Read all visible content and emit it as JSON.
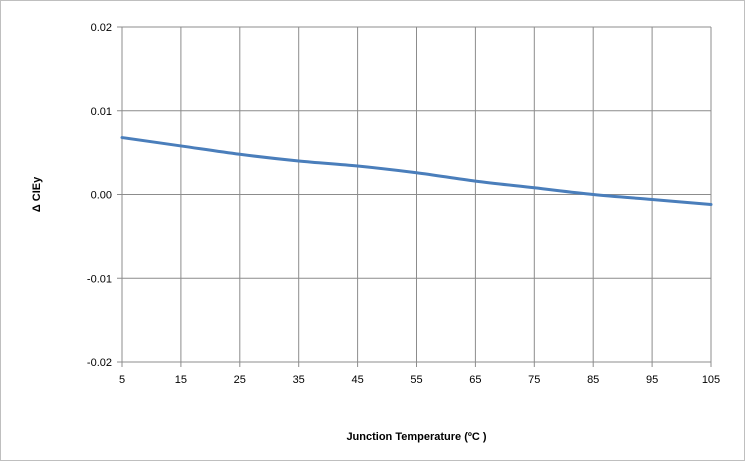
{
  "chart_data": {
    "type": "line",
    "title": "",
    "xlabel": "Junction Temperature (ºC )",
    "ylabel": "Δ CIEy",
    "x": [
      5,
      15,
      25,
      35,
      45,
      55,
      65,
      75,
      85,
      95,
      105
    ],
    "xlim": [
      5,
      105
    ],
    "ylim": [
      -0.02,
      0.02
    ],
    "x_ticks": [
      "5",
      "15",
      "25",
      "35",
      "45",
      "55",
      "65",
      "75",
      "85",
      "95",
      "105"
    ],
    "y_ticks": [
      "0.02",
      "0.01",
      "0.00",
      "-0.01",
      "-0.02"
    ],
    "y_tick_values": [
      0.02,
      0.01,
      0.0,
      -0.01,
      -0.02
    ],
    "grid": true,
    "legend": "none",
    "series": [
      {
        "values": [
          0.0068,
          0.0058,
          0.0048,
          0.004,
          0.0034,
          0.0026,
          0.0016,
          0.0008,
          0.0,
          -0.0006,
          -0.0012
        ],
        "color": "#4a7ebb"
      }
    ]
  }
}
